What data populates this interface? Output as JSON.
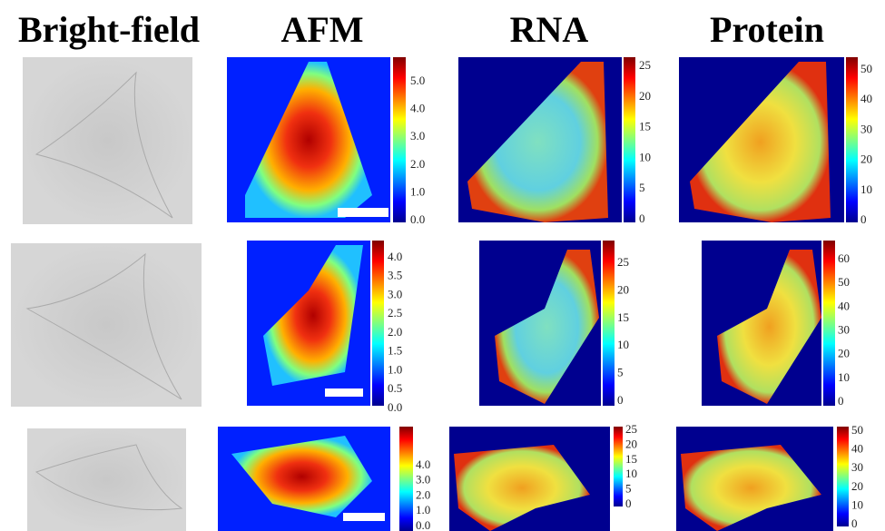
{
  "headers": [
    "Bright-field",
    "AFM",
    "RNA",
    "Protein"
  ],
  "rows": [
    {
      "colorbars": [
        [
          "5.0",
          "4.0",
          "3.0",
          "2.0",
          "1.0",
          "0.0"
        ],
        [
          "25",
          "20",
          "15",
          "10",
          "5",
          "0"
        ],
        [
          "50",
          "40",
          "30",
          "20",
          "10",
          "0"
        ]
      ]
    },
    {
      "colorbars": [
        [
          "4.0",
          "3.5",
          "3.0",
          "2.5",
          "2.0",
          "1.5",
          "1.0",
          "0.5",
          "0.0"
        ],
        [
          "25",
          "20",
          "15",
          "10",
          "5",
          "0"
        ],
        [
          "60",
          "50",
          "40",
          "30",
          "20",
          "10",
          "0"
        ]
      ]
    },
    {
      "colorbars": [
        [
          "4.0",
          "3.0",
          "2.0",
          "1.0",
          "0.0"
        ],
        [
          "25",
          "20",
          "15",
          "10",
          "5",
          "0"
        ],
        [
          "50",
          "40",
          "30",
          "20",
          "10",
          "0"
        ]
      ]
    }
  ]
}
